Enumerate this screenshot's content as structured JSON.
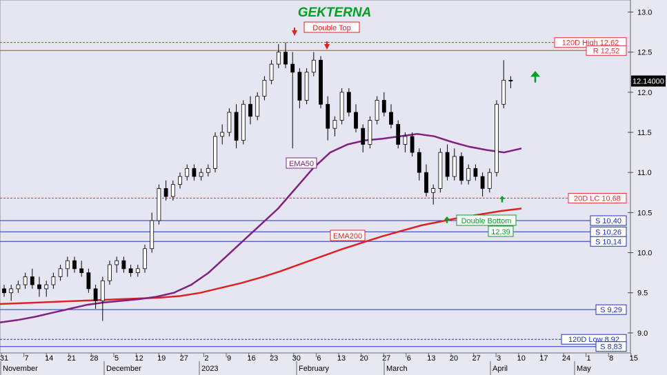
{
  "chart_data": {
    "type": "candlestick",
    "title": "GEKTERNA",
    "ylim": [
      8.75,
      13.15
    ],
    "yticks": [
      "13.0",
      "12.5",
      "12.0",
      "11.5",
      "11.0",
      "10.5",
      "10.0",
      "9.5",
      "9.0"
    ],
    "last_price": "12.14000",
    "x_ticks": [
      "31",
      "7",
      "14",
      "21",
      "28",
      "5",
      "12",
      "19",
      "27",
      "2",
      "9",
      "16",
      "23",
      "30",
      "6",
      "13",
      "20",
      "27",
      "6",
      "13",
      "20",
      "27",
      "3",
      "10",
      "17",
      "24",
      "1",
      "8",
      "15"
    ],
    "months": [
      "November",
      "December",
      "2023",
      "February",
      "March",
      "April",
      "May"
    ],
    "levels": [
      {
        "label": "120D High 12,62",
        "value": 12.62,
        "color": "#e03030",
        "style": "dotted"
      },
      {
        "label": "R 12,52",
        "value": 12.52,
        "color": "#e03030",
        "style": "solid"
      },
      {
        "label": "20D LC 10,68",
        "value": 10.68,
        "color": "#e03030",
        "style": "dotted"
      },
      {
        "label": "S 10,40",
        "value": 10.4,
        "color": "#2030c0",
        "style": "solid"
      },
      {
        "label": "S 10,26",
        "value": 10.26,
        "color": "#2030c0",
        "style": "solid"
      },
      {
        "label": "S 10,14",
        "value": 10.14,
        "color": "#2030c0",
        "style": "solid"
      },
      {
        "label": "S 9,29",
        "value": 9.29,
        "color": "#2030c0",
        "style": "solid"
      },
      {
        "label": "120D Low 8,92",
        "value": 8.92,
        "color": "#2030c0",
        "style": "dotted"
      },
      {
        "label": "S 8,83",
        "value": 8.83,
        "color": "#2030c0",
        "style": "solid"
      }
    ],
    "annotations": {
      "double_top": "Double Top",
      "double_bottom": "Double Bottom",
      "double_bottom_value": "12,39",
      "ema50": "EMA50",
      "ema200": "EMA200"
    },
    "ema50": [
      9.13,
      9.16,
      9.2,
      9.25,
      9.3,
      9.35,
      9.38,
      9.4,
      9.42,
      9.45,
      9.5,
      9.6,
      9.75,
      9.95,
      10.15,
      10.35,
      10.55,
      10.8,
      11.05,
      11.25,
      11.35,
      11.4,
      11.42,
      11.45,
      11.48,
      11.45,
      11.38,
      11.32,
      11.28,
      11.25,
      11.3
    ],
    "ema200": [
      9.36,
      9.37,
      9.38,
      9.39,
      9.4,
      9.41,
      9.42,
      9.43,
      9.44,
      9.46,
      9.5,
      9.56,
      9.62,
      9.69,
      9.77,
      9.86,
      9.95,
      10.04,
      10.12,
      10.2,
      10.27,
      10.34,
      10.39,
      10.44,
      10.48,
      10.52,
      10.55
    ],
    "candles": [
      [
        9.55,
        9.6,
        9.45,
        9.5
      ],
      [
        9.5,
        9.6,
        9.4,
        9.55
      ],
      [
        9.55,
        9.65,
        9.5,
        9.6
      ],
      [
        9.6,
        9.75,
        9.55,
        9.7
      ],
      [
        9.7,
        9.8,
        9.55,
        9.6
      ],
      [
        9.6,
        9.7,
        9.45,
        9.55
      ],
      [
        9.55,
        9.65,
        9.45,
        9.6
      ],
      [
        9.6,
        9.75,
        9.55,
        9.7
      ],
      [
        9.7,
        9.85,
        9.65,
        9.8
      ],
      [
        9.8,
        9.95,
        9.7,
        9.9
      ],
      [
        9.9,
        9.95,
        9.75,
        9.8
      ],
      [
        9.8,
        9.9,
        9.7,
        9.75
      ],
      [
        9.75,
        9.8,
        9.5,
        9.55
      ],
      [
        9.55,
        9.6,
        9.3,
        9.4
      ],
      [
        9.4,
        9.7,
        9.15,
        9.65
      ],
      [
        9.65,
        9.9,
        9.6,
        9.85
      ],
      [
        9.85,
        9.95,
        9.75,
        9.9
      ],
      [
        9.9,
        9.95,
        9.75,
        9.8
      ],
      [
        9.8,
        9.85,
        9.7,
        9.75
      ],
      [
        9.75,
        9.85,
        9.7,
        9.8
      ],
      [
        9.8,
        10.1,
        9.75,
        10.05
      ],
      [
        10.05,
        10.5,
        10.0,
        10.4
      ],
      [
        10.4,
        10.85,
        10.35,
        10.8
      ],
      [
        10.8,
        10.9,
        10.65,
        10.7
      ],
      [
        10.7,
        10.9,
        10.65,
        10.85
      ],
      [
        10.85,
        11.0,
        10.8,
        10.95
      ],
      [
        10.95,
        11.1,
        10.9,
        11.05
      ],
      [
        11.05,
        11.1,
        10.9,
        10.95
      ],
      [
        10.95,
        11.05,
        10.9,
        11.0
      ],
      [
        11.0,
        11.1,
        10.95,
        11.05
      ],
      [
        11.05,
        11.5,
        11.0,
        11.45
      ],
      [
        11.45,
        11.6,
        11.35,
        11.5
      ],
      [
        11.5,
        11.8,
        11.45,
        11.75
      ],
      [
        11.75,
        11.85,
        11.3,
        11.4
      ],
      [
        11.4,
        11.9,
        11.35,
        11.85
      ],
      [
        11.85,
        11.95,
        11.6,
        11.7
      ],
      [
        11.7,
        12.0,
        11.65,
        11.95
      ],
      [
        11.95,
        12.2,
        11.9,
        12.15
      ],
      [
        12.15,
        12.4,
        12.1,
        12.35
      ],
      [
        12.35,
        12.6,
        12.3,
        12.5
      ],
      [
        12.5,
        12.62,
        12.3,
        12.35
      ],
      [
        12.35,
        12.5,
        11.3,
        12.25
      ],
      [
        12.25,
        12.3,
        11.8,
        11.9
      ],
      [
        11.9,
        12.3,
        11.85,
        12.25
      ],
      [
        12.25,
        12.5,
        12.2,
        12.4
      ],
      [
        12.4,
        12.45,
        11.8,
        11.85
      ],
      [
        11.85,
        11.95,
        11.4,
        11.55
      ],
      [
        11.55,
        11.7,
        11.45,
        11.65
      ],
      [
        11.65,
        12.05,
        11.6,
        12.0
      ],
      [
        12.0,
        12.05,
        11.7,
        11.75
      ],
      [
        11.75,
        11.85,
        11.5,
        11.55
      ],
      [
        11.55,
        11.6,
        11.25,
        11.35
      ],
      [
        11.35,
        11.7,
        11.3,
        11.65
      ],
      [
        11.65,
        11.95,
        11.6,
        11.9
      ],
      [
        11.9,
        12.0,
        11.7,
        11.75
      ],
      [
        11.75,
        11.85,
        11.55,
        11.6
      ],
      [
        11.6,
        11.65,
        11.3,
        11.35
      ],
      [
        11.35,
        11.5,
        11.25,
        11.45
      ],
      [
        11.45,
        11.5,
        11.2,
        11.25
      ],
      [
        11.25,
        11.3,
        10.9,
        11.0
      ],
      [
        11.0,
        11.1,
        10.7,
        10.75
      ],
      [
        10.75,
        10.85,
        10.6,
        10.8
      ],
      [
        10.8,
        11.3,
        10.75,
        11.25
      ],
      [
        11.25,
        11.35,
        10.9,
        10.95
      ],
      [
        10.95,
        11.3,
        10.9,
        11.2
      ],
      [
        11.2,
        11.25,
        10.85,
        10.9
      ],
      [
        10.9,
        11.1,
        10.85,
        11.05
      ],
      [
        11.05,
        11.1,
        10.9,
        10.95
      ],
      [
        10.95,
        11.0,
        10.7,
        10.8
      ],
      [
        10.8,
        11.05,
        10.75,
        11.0
      ],
      [
        11.0,
        11.9,
        10.95,
        11.85
      ],
      [
        11.85,
        12.4,
        11.8,
        12.15
      ],
      [
        12.15,
        12.2,
        12.05,
        12.14
      ]
    ]
  }
}
